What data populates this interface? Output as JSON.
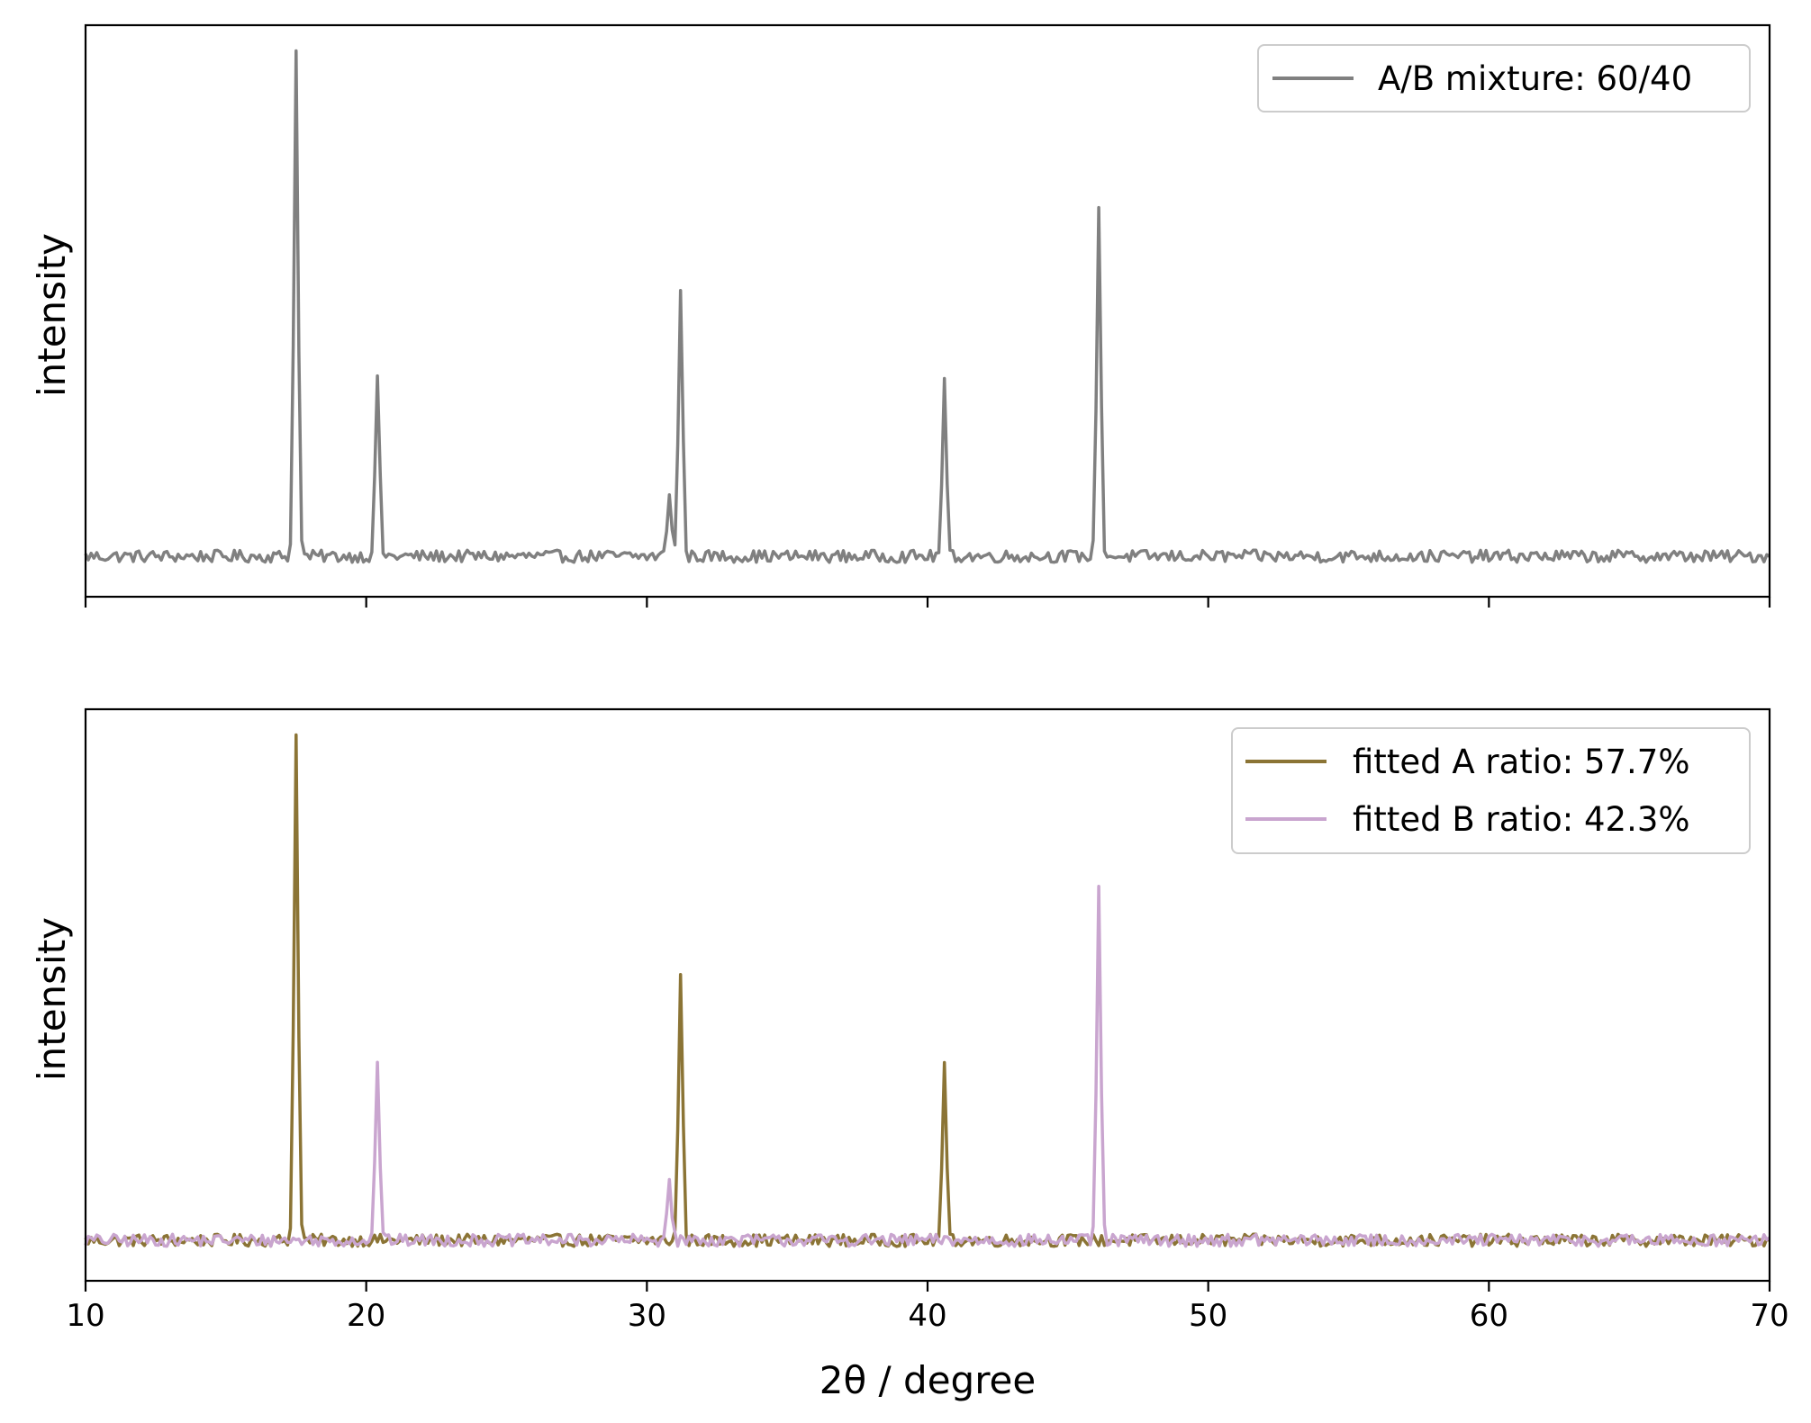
{
  "chart_data": [
    {
      "type": "line",
      "panel": "top",
      "xlabel": "",
      "ylabel": "intensity",
      "xlim": [
        10,
        70
      ],
      "xticks": [
        10,
        20,
        30,
        40,
        50,
        60,
        70
      ],
      "xtick_labels_visible": false,
      "yticks_visible": false,
      "grid": false,
      "legend_position": "top-right",
      "noise_level": 0.012,
      "series": [
        {
          "name": "A/B mixture: 60/40",
          "color": "#808080",
          "baseline": 0.0,
          "peaks": [
            {
              "x": 17.5,
              "height": 1.0
            },
            {
              "x": 20.4,
              "height": 0.36
            },
            {
              "x": 30.8,
              "height": 0.13
            },
            {
              "x": 31.2,
              "height": 0.53
            },
            {
              "x": 40.6,
              "height": 0.34
            },
            {
              "x": 46.1,
              "height": 0.7
            }
          ]
        }
      ]
    },
    {
      "type": "line",
      "panel": "bottom",
      "xlabel": "2θ / degree",
      "ylabel": "intensity",
      "xlim": [
        10,
        70
      ],
      "xticks": [
        10,
        20,
        30,
        40,
        50,
        60,
        70
      ],
      "xtick_labels": [
        "10",
        "20",
        "30",
        "40",
        "50",
        "60",
        "70"
      ],
      "yticks_visible": false,
      "grid": false,
      "legend_position": "top-right",
      "noise_level": 0.012,
      "series": [
        {
          "name": "fitted A ratio: 57.7%",
          "color": "#8b7435",
          "baseline": 0.0,
          "peaks": [
            {
              "x": 17.5,
              "height": 1.0
            },
            {
              "x": 31.2,
              "height": 0.53
            },
            {
              "x": 40.6,
              "height": 0.34
            }
          ]
        },
        {
          "name": "fitted B ratio: 42.3%",
          "color": "#c9a5cf",
          "baseline": 0.0,
          "peaks": [
            {
              "x": 20.4,
              "height": 0.36
            },
            {
              "x": 30.8,
              "height": 0.13
            },
            {
              "x": 46.1,
              "height": 0.7
            }
          ]
        }
      ]
    }
  ]
}
